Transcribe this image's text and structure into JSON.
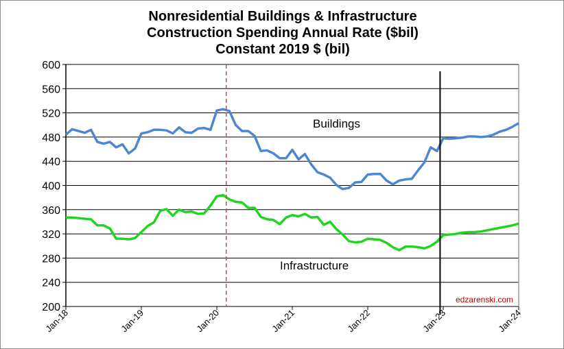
{
  "chart_data": {
    "type": "line",
    "title": [
      "Nonresidential Buildings & Infrastructure",
      "Construction Spending Annual Rate ($bil)",
      "Constant 2019 $ (bil)"
    ],
    "xlabel": "",
    "ylabel": "",
    "ylim": [
      200,
      600
    ],
    "yticks": [
      200,
      240,
      280,
      320,
      360,
      400,
      440,
      480,
      520,
      560,
      600
    ],
    "xticks": [
      "Jan-18",
      "Jan-19",
      "Jan-20",
      "Jan-21",
      "Jan-22",
      "Jan-23",
      "Jan-24"
    ],
    "x_start": "Jan-18",
    "x_end": "Jan-24",
    "frequency": "monthly",
    "grid": "horizontal",
    "series": [
      {
        "name": "Buildings",
        "color": "#4f86d2",
        "values": [
          484,
          493,
          490,
          487,
          492,
          472,
          469,
          472,
          463,
          468,
          453,
          461,
          486,
          488,
          492,
          492,
          491,
          486,
          496,
          488,
          487,
          494,
          495,
          492,
          524,
          526,
          523,
          500,
          490,
          490,
          482,
          457,
          458,
          453,
          445,
          445,
          459,
          443,
          452,
          435,
          422,
          418,
          413,
          401,
          394,
          396,
          405,
          406,
          418,
          419,
          419,
          408,
          402,
          408,
          410,
          411,
          425,
          438,
          463,
          457,
          478,
          477,
          478,
          479,
          481,
          481,
          480,
          481,
          484,
          489,
          492,
          497,
          503
        ]
      },
      {
        "name": "Infrastructure",
        "color": "#22d422",
        "values": [
          347,
          347,
          346,
          345,
          344,
          334,
          334,
          329,
          312,
          312,
          311,
          313,
          323,
          333,
          339,
          358,
          361,
          350,
          360,
          356,
          357,
          353,
          354,
          367,
          382,
          384,
          377,
          373,
          372,
          363,
          363,
          348,
          344,
          343,
          336,
          347,
          351,
          349,
          353,
          347,
          348,
          335,
          340,
          328,
          319,
          308,
          306,
          307,
          312,
          311,
          310,
          305,
          298,
          293,
          299,
          299,
          298,
          296,
          300,
          307,
          318,
          319,
          320,
          322,
          323,
          323,
          324,
          326,
          328,
          330,
          332,
          334,
          337
        ]
      }
    ],
    "markers": [
      {
        "at": "Mar-20",
        "style": "dashed",
        "color": "#c0504d"
      },
      {
        "at": "Jan-23",
        "style": "solid",
        "color": "#000000"
      }
    ],
    "watermark": "edzarenski.com",
    "watermark_color": "#c00000"
  }
}
